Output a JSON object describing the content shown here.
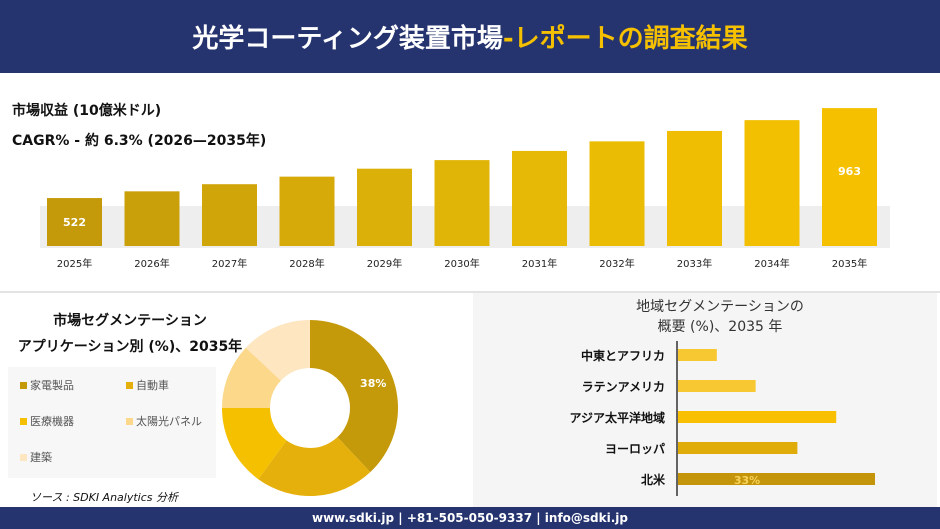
{
  "header": {
    "title": "光学コーティング装置市場 ",
    "title_highlight": "-レポートの調査結果"
  },
  "colors": {
    "navy": "#25336f",
    "gold": "#f5c000"
  },
  "revenue": {
    "label": "市場収益 (10億米ドル)",
    "cagr": "CAGR% - 約 6.3% (2026—2035年)"
  },
  "segment": {
    "title_line1": "市場セグメンテーション",
    "title_line2": "アプリケーション別 (%)、2035年"
  },
  "region": {
    "title_line1": "地域セグメンテーションの",
    "title_line2": "概要 (%)、2035 年"
  },
  "source": "ソース : SDKI Analytics 分析",
  "footer": "www.sdki.jp | +81-505-050-9337 | info@sdki.jp",
  "chart_data": [
    {
      "type": "bar",
      "categories": [
        "2025年",
        "2026年",
        "2027年",
        "2028年",
        "2029年",
        "2030年",
        "2031年",
        "2032年",
        "2033年",
        "2034年",
        "2035年"
      ],
      "values": [
        522,
        555,
        590,
        627,
        666,
        708,
        753,
        800,
        851,
        904,
        963
      ],
      "data_labels": {
        "0": "522",
        "10": "963"
      },
      "colors": [
        "#c49a0a",
        "#c9a00a",
        "#cfa50a",
        "#d5aa09",
        "#dbb008",
        "#e1b507",
        "#e6b906",
        "#ebbc04",
        "#efbe03",
        "#f2bf01",
        "#f5c000"
      ]
    },
    {
      "type": "pie",
      "donut": true,
      "categories": [
        "家電製品",
        "自動車",
        "医療機器",
        "太陽光パネル",
        "建築"
      ],
      "values": [
        38,
        22,
        15,
        12,
        13
      ],
      "data_labels": [
        "38%",
        "",
        "",
        "",
        ""
      ],
      "colors": [
        "#c49a0a",
        "#e6b00c",
        "#f5c000",
        "#fbd88a",
        "#fde6c0"
      ]
    },
    {
      "type": "bar",
      "orientation": "horizontal",
      "categories": [
        "中東とアフリカ",
        "ラテンアメリカ",
        "アジア太平洋地域",
        "ヨーロッパ",
        "北米"
      ],
      "values": [
        6.5,
        13,
        26.5,
        20,
        33
      ],
      "data_labels": [
        "",
        "",
        "",
        "",
        "33%"
      ],
      "colors": [
        "#f8c832",
        "#f8c832",
        "#f8c000",
        "#e0ac0a",
        "#c4940a"
      ]
    }
  ]
}
